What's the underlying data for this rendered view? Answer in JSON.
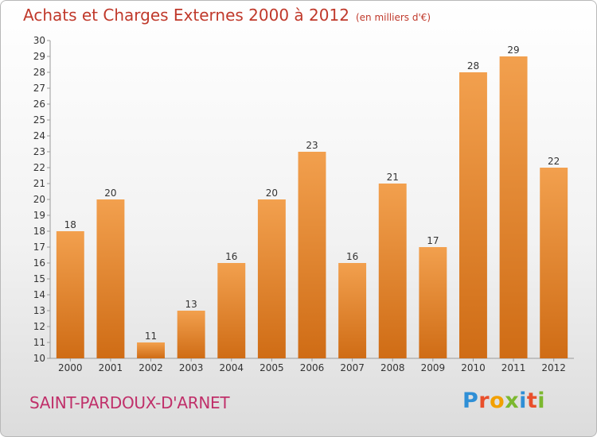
{
  "header": {
    "title": "Achats et Charges Externes 2000 à 2012",
    "subtitle": "(en milliers d'€)"
  },
  "footer": {
    "commune": "SAINT-PARDOUX-D'ARNET",
    "logo": "Proxiti"
  },
  "colors": {
    "bar_top": "#f2a04e",
    "bar_bottom": "#cf6c15",
    "title": "#c0392b",
    "commune": "#c0306a"
  },
  "chart_data": {
    "type": "bar",
    "categories": [
      "2000",
      "2001",
      "2002",
      "2003",
      "2004",
      "2005",
      "2006",
      "2007",
      "2008",
      "2009",
      "2010",
      "2011",
      "2012"
    ],
    "values": [
      18,
      20,
      11,
      13,
      16,
      20,
      23,
      16,
      21,
      17,
      28,
      29,
      22
    ],
    "ylim": [
      10,
      30
    ],
    "yticks": [
      10,
      11,
      12,
      13,
      14,
      15,
      16,
      17,
      18,
      19,
      20,
      21,
      22,
      23,
      24,
      25,
      26,
      27,
      28,
      29,
      30
    ],
    "grid": false,
    "data_labels": true
  }
}
